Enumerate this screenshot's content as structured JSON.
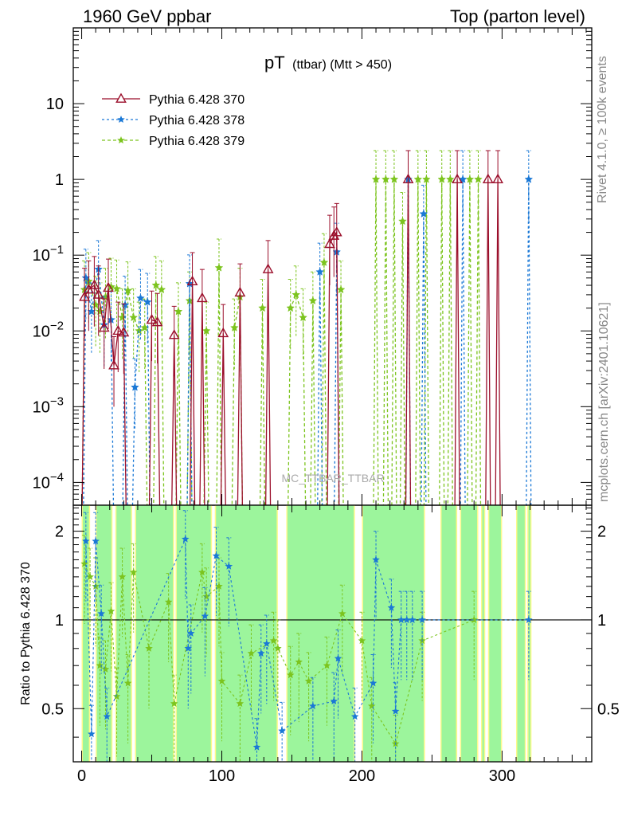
{
  "header": {
    "left": "1960 GeV ppbar",
    "right": "Top (parton level)"
  },
  "side": {
    "rivet": "Rivet 4.1.0, ≥ 100k events",
    "mcplots": "mcplots.cern.ch [arXiv:2401.10621]"
  },
  "watermark": "MC_TTBAR_TTBAR",
  "colors": {
    "s370": "#9b0f2b",
    "s378": "#1a78d6",
    "s379": "#7cc41e",
    "band_green": "#9cf59c",
    "band_yellow": "#fdf98c"
  },
  "chart_data": [
    {
      "type": "line",
      "title_main": "pT",
      "title_sub": "(ttbar) (Mtt > 450)",
      "xlabel": "",
      "ylabel": "",
      "yscale": "log",
      "xlim": [
        -6,
        364
      ],
      "ylim": [
        5e-05,
        100
      ],
      "x_tick_labels": [
        "0",
        "100",
        "200",
        "300"
      ],
      "y_tick_labels": [
        "10^-4",
        "10^-3",
        "10^-2",
        "10^-1",
        "1",
        "10"
      ],
      "legend": [
        {
          "label": "Pythia 6.428 370",
          "style": "solid",
          "marker": "triangle"
        },
        {
          "label": "Pythia 6.428 378",
          "style": "dashed",
          "marker": "star"
        },
        {
          "label": "Pythia 6.428 379",
          "style": "dashed",
          "marker": "star"
        }
      ],
      "series": [
        {
          "name": "Pythia 6.428 370",
          "points": [
            [
              2,
              0.028
            ],
            [
              5,
              0.035
            ],
            [
              9,
              0.04
            ],
            [
              12,
              0.03
            ],
            [
              16,
              0.011
            ],
            [
              19,
              0.037
            ],
            [
              23,
              0.0035
            ],
            [
              26,
              0.01
            ],
            [
              30,
              0.0095
            ],
            [
              50,
              0.014
            ],
            [
              54,
              0.013
            ],
            [
              66,
              0.0088
            ],
            [
              79,
              0.045
            ],
            [
              86,
              0.027
            ],
            [
              101,
              0.0093
            ],
            [
              113,
              0.032
            ],
            [
              133,
              0.065
            ],
            [
              177,
              0.14
            ],
            [
              180,
              0.18
            ],
            [
              182,
              0.2
            ],
            [
              233,
              1.0
            ],
            [
              268,
              1.0
            ],
            [
              290,
              1.0
            ],
            [
              297,
              1.0
            ]
          ]
        },
        {
          "name": "Pythia 6.428 378",
          "points": [
            [
              3,
              0.05
            ],
            [
              7,
              0.018
            ],
            [
              12,
              0.065
            ],
            [
              16,
              0.012
            ],
            [
              21,
              0.014
            ],
            [
              31,
              0.022
            ],
            [
              38,
              0.0018
            ],
            [
              42,
              0.027
            ],
            [
              47,
              0.024
            ],
            [
              77,
              0.042
            ],
            [
              170,
              0.06
            ],
            [
              182,
              0.11
            ],
            [
              233,
              1.0
            ],
            [
              244,
              0.35
            ],
            [
              272,
              1.0
            ],
            [
              319,
              1.0
            ]
          ]
        },
        {
          "name": "Pythia 6.428 379",
          "points": [
            [
              2,
              0.035
            ],
            [
              5,
              0.045
            ],
            [
              10,
              0.022
            ],
            [
              13,
              0.018
            ],
            [
              17,
              0.028
            ],
            [
              21,
              0.038
            ],
            [
              25,
              0.036
            ],
            [
              29,
              0.015
            ],
            [
              33,
              0.034
            ],
            [
              37,
              0.015
            ],
            [
              41,
              0.01
            ],
            [
              45,
              0.011
            ],
            [
              53,
              0.04
            ],
            [
              57,
              0.035
            ],
            [
              69,
              0.018
            ],
            [
              77,
              0.025
            ],
            [
              89,
              0.01
            ],
            [
              98,
              0.068
            ],
            [
              109,
              0.011
            ],
            [
              113,
              0.028
            ],
            [
              129,
              0.02
            ],
            [
              149,
              0.02
            ],
            [
              153,
              0.03
            ],
            [
              158,
              0.015
            ],
            [
              165,
              0.025
            ],
            [
              173,
              0.08
            ],
            [
              185,
              0.035
            ],
            [
              210,
              1.0
            ],
            [
              217,
              1.0
            ],
            [
              223,
              1.0
            ],
            [
              229,
              0.28
            ],
            [
              240,
              1.0
            ],
            [
              246,
              1.0
            ],
            [
              257,
              1.0
            ],
            [
              263,
              1.0
            ],
            [
              277,
              1.0
            ],
            [
              283,
              1.0
            ]
          ]
        }
      ]
    },
    {
      "type": "line",
      "ylabel": "Ratio to Pythia 6.428 370",
      "ylim": [
        0.33,
        2.45
      ],
      "yscale": "log",
      "x_tick_labels": [
        "0",
        "100",
        "200",
        "300"
      ],
      "y_tick_labels": [
        "0.5",
        "1",
        "2"
      ],
      "reference_line": 1,
      "band_spans": [
        [
          0,
          6
        ],
        [
          10,
          22
        ],
        [
          24,
          36
        ],
        [
          38,
          66
        ],
        [
          67,
          93
        ],
        [
          95,
          140
        ],
        [
          146,
          195
        ],
        [
          200,
          245
        ],
        [
          256,
          268
        ],
        [
          270,
          283
        ],
        [
          285,
          288
        ],
        [
          290,
          300
        ],
        [
          310,
          317
        ],
        [
          318,
          321
        ]
      ],
      "series": [
        {
          "name": "Pythia 6.428 378",
          "points": [
            [
              3,
              1.85
            ],
            [
              7,
              0.41
            ],
            [
              10,
              1.85
            ],
            [
              14,
              1.05
            ],
            [
              18,
              0.47
            ],
            [
              74,
              1.88
            ],
            [
              76,
              0.8
            ],
            [
              78,
              0.9
            ],
            [
              88,
              1.03
            ],
            [
              96,
              1.65
            ],
            [
              105,
              1.52
            ],
            [
              125,
              0.37
            ],
            [
              128,
              0.77
            ],
            [
              132,
              0.83
            ],
            [
              143,
              0.42
            ],
            [
              165,
              0.51
            ],
            [
              180,
              0.53
            ],
            [
              183,
              0.74
            ],
            [
              195,
              0.47
            ],
            [
              208,
              0.61
            ],
            [
              210,
              1.6
            ],
            [
              221,
              1.1
            ],
            [
              224,
              0.49
            ],
            [
              228,
              1.0
            ],
            [
              232,
              1.0
            ],
            [
              236,
              1.0
            ],
            [
              243,
              1.0
            ],
            [
              319,
              1.0
            ]
          ]
        },
        {
          "name": "Pythia 6.428 379",
          "points": [
            [
              2,
              1.55
            ],
            [
              6,
              1.4
            ],
            [
              10,
              1.3
            ],
            [
              13,
              0.7
            ],
            [
              17,
              0.68
            ],
            [
              21,
              1.07
            ],
            [
              25,
              0.55
            ],
            [
              29,
              1.4
            ],
            [
              33,
              0.61
            ],
            [
              37,
              1.45
            ],
            [
              48,
              0.8
            ],
            [
              62,
              1.15
            ],
            [
              66,
              0.52
            ],
            [
              86,
              1.45
            ],
            [
              89,
              1.2
            ],
            [
              98,
              1.3
            ],
            [
              100,
              0.62
            ],
            [
              113,
              0.52
            ],
            [
              121,
              0.77
            ],
            [
              137,
              0.85
            ],
            [
              140,
              0.8
            ],
            [
              149,
              0.65
            ],
            [
              155,
              0.72
            ],
            [
              162,
              0.62
            ],
            [
              175,
              0.7
            ],
            [
              186,
              1.05
            ],
            [
              200,
              0.85
            ],
            [
              207,
              0.51
            ],
            [
              224,
              0.38
            ],
            [
              243,
              0.85
            ],
            [
              280,
              1.0
            ]
          ]
        }
      ]
    }
  ]
}
